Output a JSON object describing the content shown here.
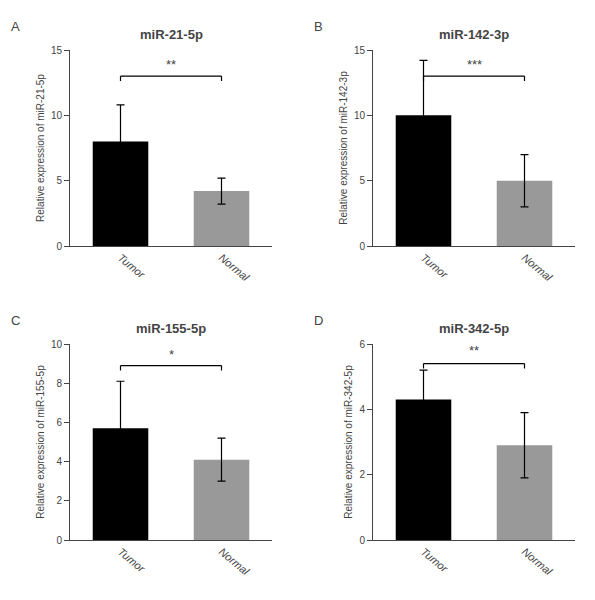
{
  "chart_data": [
    {
      "type": "bar",
      "label": "A",
      "title": "miR-21-5p",
      "ylabel": "Relative expression of miR-21-5p",
      "categories": [
        "Tumor",
        "Normal"
      ],
      "values": [
        8.0,
        4.2
      ],
      "errors": [
        2.8,
        1.0
      ],
      "colors": [
        "#000000",
        "#999999"
      ],
      "ylim": [
        0,
        15
      ],
      "yticks": [
        0,
        5,
        10,
        15
      ],
      "grid": false,
      "annotations": [
        {
          "text": "**",
          "y": 13.2,
          "bracket_y": 13.0
        }
      ]
    },
    {
      "type": "bar",
      "label": "B",
      "title": "miR-142-3p",
      "ylabel": "Relative expression of miR-142-3p",
      "categories": [
        "Tumor",
        "Normal"
      ],
      "values": [
        10.0,
        5.0
      ],
      "errors": [
        4.2,
        2.0
      ],
      "colors": [
        "#000000",
        "#999999"
      ],
      "ylim": [
        0,
        15
      ],
      "yticks": [
        0,
        5,
        10,
        15
      ],
      "grid": false,
      "annotations": [
        {
          "text": "***",
          "y": 13.2,
          "bracket_y": 13.0
        }
      ]
    },
    {
      "type": "bar",
      "label": "C",
      "title": "miR-155-5p",
      "ylabel": "Relative expression of miR-155-5p",
      "categories": [
        "Tumor",
        "Normal"
      ],
      "values": [
        5.7,
        4.1
      ],
      "errors": [
        2.4,
        1.1
      ],
      "colors": [
        "#000000",
        "#999999"
      ],
      "ylim": [
        0,
        10
      ],
      "yticks": [
        0,
        2,
        4,
        6,
        8,
        10
      ],
      "grid": false,
      "annotations": [
        {
          "text": "*",
          "y": 9.0,
          "bracket_y": 8.9
        }
      ]
    },
    {
      "type": "bar",
      "label": "D",
      "title": "miR-342-5p",
      "ylabel": "Relative expression of miR-342-5p",
      "categories": [
        "Tumor",
        "Normal"
      ],
      "values": [
        4.3,
        2.9
      ],
      "errors": [
        0.9,
        1.0
      ],
      "colors": [
        "#000000",
        "#999999"
      ],
      "ylim": [
        0,
        6
      ],
      "yticks": [
        0,
        2,
        4,
        6
      ],
      "grid": false,
      "annotations": [
        {
          "text": "**",
          "y": 5.5,
          "bracket_y": 5.4
        }
      ]
    }
  ]
}
